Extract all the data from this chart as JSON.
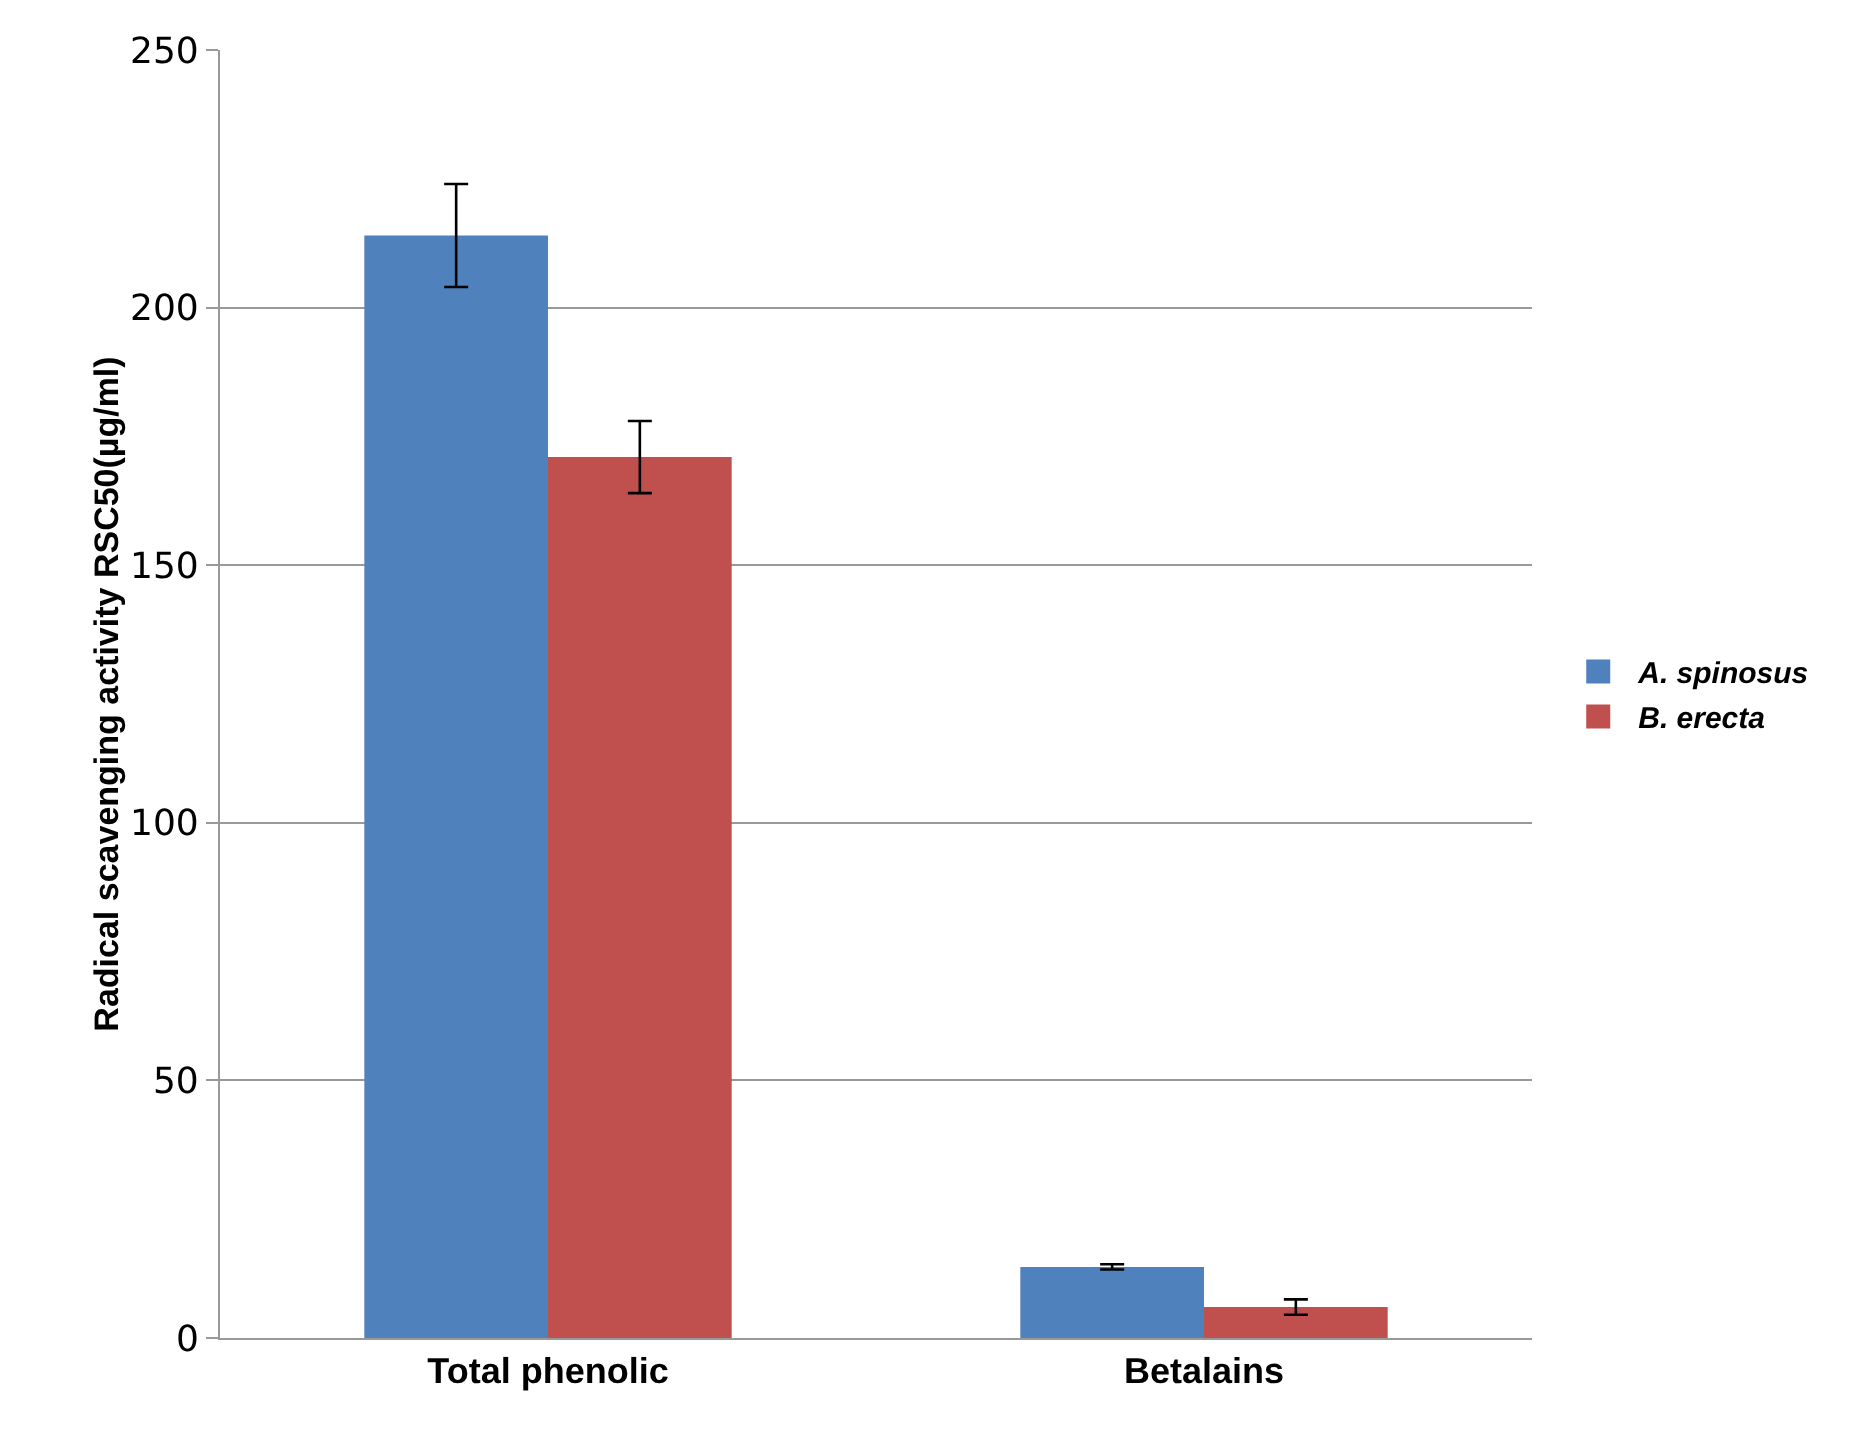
{
  "chart_data": {
    "type": "bar",
    "ylabel": "Radical scavenging activity RSC50(µg/ml)",
    "categories": [
      "Total phenolic",
      "Betalains"
    ],
    "series": [
      {
        "name": "A. spinosus",
        "color": "#4f81bd",
        "values": [
          214,
          13.8
        ],
        "errors": [
          10,
          0.5
        ]
      },
      {
        "name": "B. erecta",
        "color": "#c0504d",
        "values": [
          171,
          6
        ],
        "errors": [
          7,
          1.5
        ]
      }
    ],
    "ylim": [
      0,
      250
    ],
    "yticks": [
      0,
      50,
      100,
      150,
      200,
      250
    ],
    "grid": "y",
    "legend": "right"
  }
}
